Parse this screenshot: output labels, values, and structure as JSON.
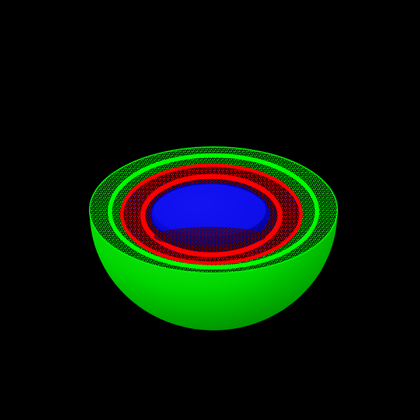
{
  "scene": {
    "background": "#000000",
    "shells": [
      {
        "name": "outer-shell",
        "color": "#00e000"
      },
      {
        "name": "middle-shell",
        "color": "#e00000"
      },
      {
        "name": "inner-shell",
        "color": "#0000f0"
      }
    ]
  }
}
